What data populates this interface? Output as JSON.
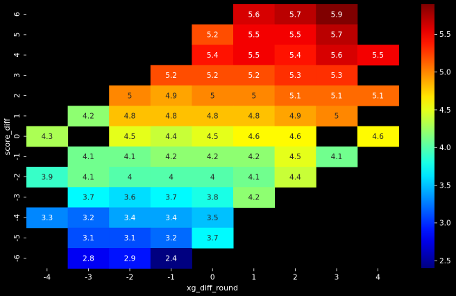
{
  "chart_data": {
    "type": "heatmap",
    "xlabel": "xg_diff_round",
    "ylabel": "score_diff",
    "x_categories": [
      "-4",
      "-3",
      "-2",
      "-1",
      "0",
      "1",
      "2",
      "3",
      "4"
    ],
    "y_categories": [
      "6",
      "5",
      "4",
      "3",
      "2",
      "1",
      "0",
      "-1",
      "-2",
      "-3",
      "-4",
      "-5",
      "-6"
    ],
    "values": [
      [
        null,
        null,
        null,
        null,
        null,
        5.6,
        5.7,
        5.9,
        null
      ],
      [
        null,
        null,
        null,
        null,
        5.2,
        5.5,
        5.5,
        5.7,
        null
      ],
      [
        null,
        null,
        null,
        null,
        5.4,
        5.5,
        5.4,
        5.6,
        5.5
      ],
      [
        null,
        null,
        null,
        5.2,
        5.2,
        5.2,
        5.3,
        5.3,
        null
      ],
      [
        null,
        null,
        5,
        4.9,
        5,
        5,
        5.1,
        5.1,
        5.1
      ],
      [
        null,
        4.2,
        4.8,
        4.8,
        4.8,
        4.8,
        4.9,
        5,
        null
      ],
      [
        4.3,
        null,
        4.5,
        4.4,
        4.5,
        4.6,
        4.6,
        null,
        4.6
      ],
      [
        null,
        4.1,
        4.1,
        4.2,
        4.2,
        4.2,
        4.5,
        4.1,
        null
      ],
      [
        3.9,
        4.1,
        4,
        4,
        4,
        4.1,
        4.4,
        null,
        null
      ],
      [
        null,
        3.7,
        3.6,
        3.7,
        3.8,
        4.2,
        null,
        null,
        null
      ],
      [
        3.3,
        3.2,
        3.4,
        3.4,
        3.5,
        null,
        null,
        null,
        null
      ],
      [
        null,
        3.1,
        3.1,
        3.2,
        3.7,
        null,
        null,
        null,
        null
      ],
      [
        null,
        2.8,
        2.9,
        2.4,
        null,
        null,
        null,
        null,
        null
      ]
    ],
    "colormap": "jet",
    "vmin": 2.4,
    "vmax": 5.9,
    "colorbar_ticks": [
      "2.5",
      "3.0",
      "3.5",
      "4.0",
      "4.5",
      "5.0",
      "5.5"
    ],
    "background_color": "#000000"
  }
}
